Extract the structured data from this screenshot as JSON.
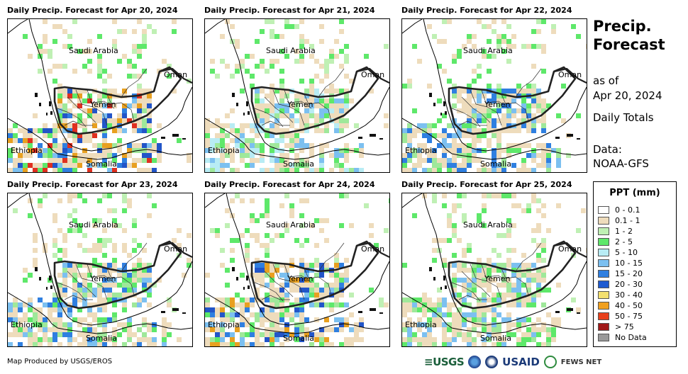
{
  "panels": [
    {
      "title": "Daily Precip. Forecast for Apr 20, 2024",
      "palette": [
        "#9fe89a",
        "#5ee86a",
        "#7cc0f0",
        "#2f7fe0",
        "#2255c8",
        "#e8a020",
        "#e03020"
      ]
    },
    {
      "title": "Daily Precip. Forecast for Apr 21, 2024",
      "palette": [
        "#9fe89a",
        "#5ee86a",
        "#b8ecf4",
        "#7cc0f0"
      ]
    },
    {
      "title": "Daily Precip. Forecast for Apr 22, 2024",
      "palette": [
        "#9fe89a",
        "#5ee86a",
        "#7cc0f0",
        "#2f7fe0"
      ]
    },
    {
      "title": "Daily Precip. Forecast for Apr 23, 2024",
      "palette": [
        "#9fe89a",
        "#5ee86a",
        "#7cc0f0",
        "#2f7fe0"
      ]
    },
    {
      "title": "Daily Precip. Forecast for Apr 24, 2024",
      "palette": [
        "#9fe89a",
        "#5ee86a",
        "#7cc0f0",
        "#2f7fe0",
        "#2255c8",
        "#e8a020"
      ]
    },
    {
      "title": "Daily Precip. Forecast for Apr 25, 2024",
      "palette": [
        "#9fe89a",
        "#5ee86a",
        "#7cc0f0"
      ]
    }
  ],
  "map_labels": {
    "saudi_arabia": "Saudi Arabia",
    "oman": "Oman",
    "yemen": "Yemen",
    "ethiopia": "Ethiopia",
    "somalia": "Somalia"
  },
  "sidebar": {
    "title_line1": "Precip.",
    "title_line2": "Forecast",
    "as_of": "as of",
    "date": "Apr 20, 2024",
    "totals": "Daily Totals",
    "data_label": "Data:",
    "data_source": "NOAA-GFS"
  },
  "legend": {
    "title": "PPT (mm)",
    "items": [
      {
        "label": "0 - 0.1",
        "color": "#ffffff"
      },
      {
        "label": "0.1 - 1",
        "color": "#eedcbc"
      },
      {
        "label": "1 - 2",
        "color": "#bff0b4"
      },
      {
        "label": "2 - 5",
        "color": "#5ee86a"
      },
      {
        "label": "5 - 10",
        "color": "#b8ecf4"
      },
      {
        "label": "10 - 15",
        "color": "#7cc0f0"
      },
      {
        "label": "15 - 20",
        "color": "#2f7fe0"
      },
      {
        "label": "20 - 30",
        "color": "#1f5bd0"
      },
      {
        "label": "30 - 40",
        "color": "#f4e070"
      },
      {
        "label": "40 - 50",
        "color": "#f0a020"
      },
      {
        "label": "50 - 75",
        "color": "#e8401c"
      },
      {
        "label": "> 75",
        "color": "#a01818"
      },
      {
        "label": "No Data",
        "color": "#999999"
      }
    ]
  },
  "footer": {
    "credit": "Map Produced by USGS/EROS",
    "logo_usgs": "≡USGS",
    "logo_usaid": "USAID",
    "logo_fews": "FEWS NET"
  }
}
